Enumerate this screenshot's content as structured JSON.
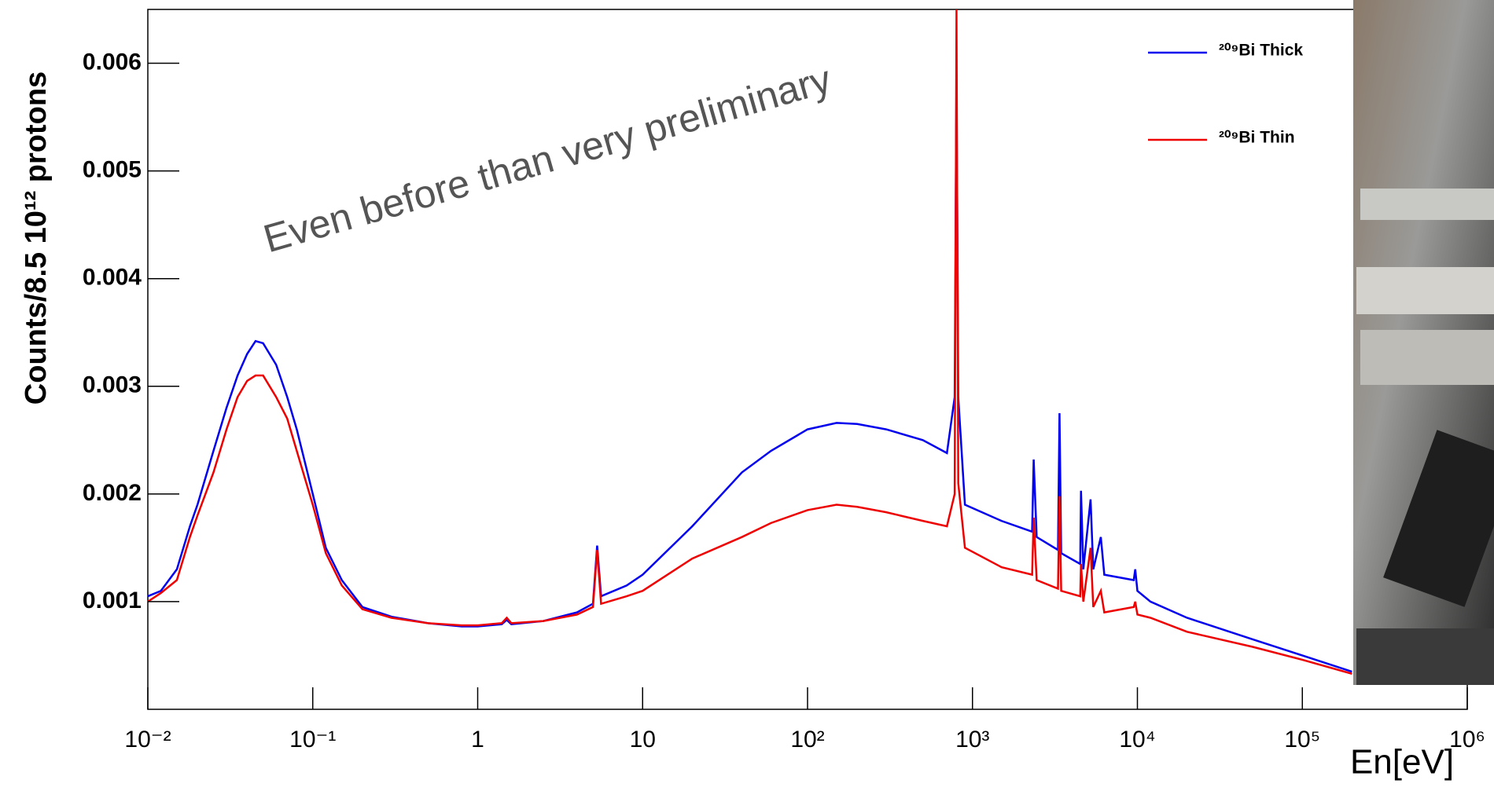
{
  "chart_data": {
    "type": "line",
    "annotation": "Even before than very preliminary",
    "x_label": "En[eV]",
    "y_label": "Counts/8.5 10¹² protons",
    "xscale": "log",
    "xlim": [
      0.01,
      1000000
    ],
    "ylim": [
      0,
      0.0065
    ],
    "xticks": [
      {
        "value": 0.01,
        "label": "10⁻²"
      },
      {
        "value": 0.1,
        "label": "10⁻¹"
      },
      1,
      10,
      {
        "value": 100,
        "label": "10²"
      },
      {
        "value": 1000,
        "label": "10³"
      },
      {
        "value": 10000,
        "label": "10⁴"
      },
      {
        "value": 100000,
        "label": "10⁵"
      },
      {
        "value": 1000000,
        "label": "10⁶"
      }
    ],
    "yticks": [
      0.001,
      0.002,
      0.003,
      0.004,
      0.005,
      0.006
    ],
    "legend": "upper right",
    "x": [
      0.01,
      0.012,
      0.015,
      0.018,
      0.02,
      0.025,
      0.03,
      0.035,
      0.04,
      0.045,
      0.05,
      0.06,
      0.07,
      0.08,
      0.1,
      0.12,
      0.15,
      0.2,
      0.3,
      0.5,
      0.8,
      1,
      1.4,
      1.5,
      1.6,
      2.5,
      4,
      5,
      5.3,
      5.6,
      8,
      10,
      20,
      40,
      60,
      100,
      150,
      200,
      300,
      500,
      700,
      780,
      800,
      820,
      900,
      1500,
      2300,
      2350,
      2450,
      3300,
      3370,
      3450,
      4500,
      4550,
      4700,
      5200,
      5400,
      6000,
      6300,
      9500,
      9700,
      10000,
      12000,
      20000,
      50000,
      100000,
      200000
    ],
    "series": [
      {
        "name": "²⁰⁹Bi Thick",
        "color": "#0000ee",
        "values": [
          0.00105,
          0.0011,
          0.0013,
          0.0017,
          0.0019,
          0.0024,
          0.0028,
          0.0031,
          0.0033,
          0.00342,
          0.0034,
          0.0032,
          0.0029,
          0.0026,
          0.002,
          0.0015,
          0.0012,
          0.00095,
          0.00086,
          0.0008,
          0.00077,
          0.00077,
          0.00079,
          0.00083,
          0.00079,
          0.00082,
          0.0009,
          0.00098,
          0.00152,
          0.00105,
          0.00115,
          0.00125,
          0.0017,
          0.0022,
          0.0024,
          0.0026,
          0.00266,
          0.00265,
          0.0026,
          0.0025,
          0.00238,
          0.0029,
          0.0059,
          0.0029,
          0.0019,
          0.00175,
          0.00165,
          0.00232,
          0.0016,
          0.00148,
          0.00275,
          0.00145,
          0.00135,
          0.00203,
          0.0013,
          0.00195,
          0.0013,
          0.0016,
          0.00125,
          0.0012,
          0.0013,
          0.0011,
          0.001,
          0.00085,
          0.00065,
          0.0005,
          0.00035
        ]
      },
      {
        "name": "²⁰⁹Bi Thin",
        "color": "#ee0000",
        "values": [
          0.001,
          0.00108,
          0.0012,
          0.0016,
          0.0018,
          0.0022,
          0.0026,
          0.0029,
          0.00305,
          0.0031,
          0.0031,
          0.0029,
          0.0027,
          0.0024,
          0.0019,
          0.00145,
          0.00115,
          0.00093,
          0.00085,
          0.0008,
          0.00078,
          0.00078,
          0.0008,
          0.00085,
          0.0008,
          0.00082,
          0.00088,
          0.00095,
          0.00148,
          0.00098,
          0.00105,
          0.0011,
          0.0014,
          0.0016,
          0.00173,
          0.00185,
          0.0019,
          0.00188,
          0.00183,
          0.00175,
          0.0017,
          0.002,
          0.0065,
          0.0021,
          0.0015,
          0.00132,
          0.00125,
          0.00178,
          0.0012,
          0.00112,
          0.00198,
          0.0011,
          0.00105,
          0.00135,
          0.001,
          0.0015,
          0.00095,
          0.0011,
          0.0009,
          0.00095,
          0.001,
          0.00088,
          0.00085,
          0.00072,
          0.00058,
          0.00046,
          0.00033
        ]
      }
    ]
  }
}
